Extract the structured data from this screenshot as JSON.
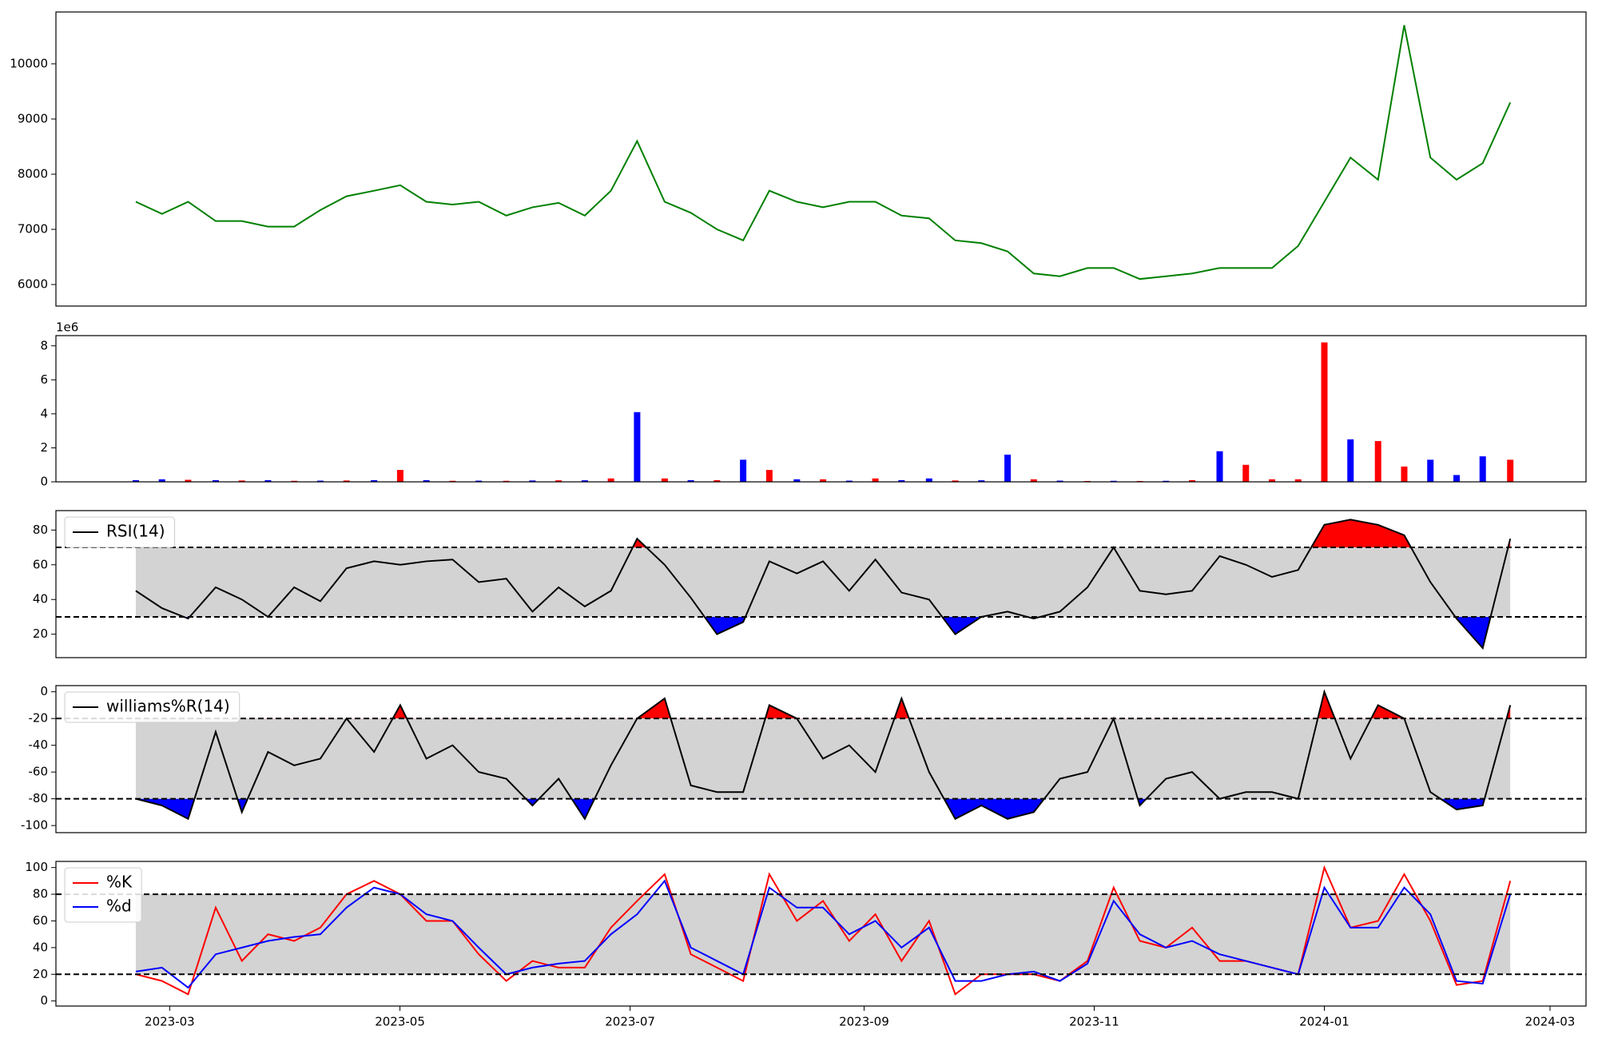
{
  "chart_data": [
    {
      "type": "line",
      "color": "green",
      "xlim": [
        2023.079,
        2024.19
      ],
      "x": [
        2023.137,
        2023.156,
        2023.175,
        2023.195,
        2023.214,
        2023.233,
        2023.252,
        2023.271,
        2023.29,
        2023.31,
        2023.329,
        2023.348,
        2023.367,
        2023.386,
        2023.406,
        2023.425,
        2023.444,
        2023.463,
        2023.482,
        2023.501,
        2023.521,
        2023.54,
        2023.559,
        2023.578,
        2023.597,
        2023.617,
        2023.636,
        2023.655,
        2023.674,
        2023.693,
        2023.713,
        2023.732,
        2023.751,
        2023.77,
        2023.789,
        2023.808,
        2023.828,
        2023.847,
        2023.866,
        2023.885,
        2023.904,
        2023.924,
        2023.943,
        2023.962,
        2023.981,
        2024.0,
        2024.019,
        2024.039,
        2024.058,
        2024.077,
        2024.096,
        2024.115,
        2024.135
      ],
      "values": [
        7500,
        7280,
        7500,
        7150,
        7150,
        7050,
        7050,
        7350,
        7600,
        7700,
        7800,
        7500,
        7450,
        7500,
        7250,
        7400,
        7480,
        7250,
        7700,
        8600,
        7500,
        7300,
        7000,
        6800,
        7700,
        7500,
        7400,
        7500,
        7500,
        7250,
        7200,
        6800,
        6750,
        6600,
        6200,
        6150,
        6300,
        6300,
        6100,
        6150,
        6200,
        6300,
        6300,
        6300,
        6700,
        7500,
        8300,
        7900,
        10700,
        8300,
        7900,
        8200,
        9300
      ],
      "ylim": [
        5610,
        10940
      ],
      "yticks": [
        6000,
        7000,
        8000,
        9000,
        10000
      ]
    },
    {
      "type": "bar",
      "offset_label": "1e6",
      "xlim": [
        2023.079,
        2024.19
      ],
      "x": [
        2023.137,
        2023.156,
        2023.175,
        2023.195,
        2023.214,
        2023.233,
        2023.252,
        2023.271,
        2023.29,
        2023.31,
        2023.329,
        2023.348,
        2023.367,
        2023.386,
        2023.406,
        2023.425,
        2023.444,
        2023.463,
        2023.482,
        2023.501,
        2023.521,
        2023.54,
        2023.559,
        2023.578,
        2023.597,
        2023.617,
        2023.636,
        2023.655,
        2023.674,
        2023.693,
        2023.713,
        2023.732,
        2023.751,
        2023.77,
        2023.789,
        2023.808,
        2023.828,
        2023.847,
        2023.866,
        2023.885,
        2023.904,
        2023.924,
        2023.943,
        2023.962,
        2023.981,
        2024.0,
        2024.019,
        2024.039,
        2024.058,
        2024.077,
        2024.096,
        2024.115,
        2024.135
      ],
      "values": [
        100000,
        150000,
        120000,
        100000,
        80000,
        100000,
        60000,
        70000,
        80000,
        100000,
        700000,
        100000,
        60000,
        70000,
        60000,
        80000,
        90000,
        90000,
        200000,
        4100000,
        200000,
        100000,
        100000,
        1300000,
        700000,
        150000,
        150000,
        70000,
        200000,
        100000,
        200000,
        80000,
        90000,
        1600000,
        150000,
        70000,
        50000,
        60000,
        50000,
        60000,
        100000,
        1800000,
        1000000,
        150000,
        150000,
        8200000,
        2500000,
        2400000,
        900000,
        1300000,
        400000,
        1500000,
        1300000
      ],
      "colors": [
        "blue",
        "blue",
        "red",
        "blue",
        "red",
        "blue",
        "red",
        "blue",
        "red",
        "blue",
        "red",
        "blue",
        "red",
        "blue",
        "red",
        "blue",
        "red",
        "blue",
        "red",
        "blue",
        "red",
        "blue",
        "red",
        "blue",
        "red",
        "blue",
        "red",
        "blue",
        "red",
        "blue",
        "blue",
        "red",
        "blue",
        "blue",
        "red",
        "blue",
        "red",
        "blue",
        "red",
        "blue",
        "red",
        "blue",
        "red",
        "red",
        "red",
        "red",
        "blue",
        "red",
        "red",
        "blue",
        "blue",
        "blue",
        "red"
      ],
      "ylim": [
        0,
        8600000
      ],
      "yticks": [
        0,
        {
          "value": 2000000,
          "label": "2"
        },
        {
          "value": 4000000,
          "label": "4"
        },
        {
          "value": 6000000,
          "label": "6"
        },
        {
          "value": 8000000,
          "label": "8"
        }
      ]
    },
    {
      "type": "line",
      "legend": "upper left",
      "thresholds": [
        30,
        70
      ],
      "band_color": "lightgray",
      "fill_above_color": "red",
      "fill_below_color": "blue",
      "xlim": [
        2023.079,
        2024.19
      ],
      "x": [
        2023.137,
        2023.156,
        2023.175,
        2023.195,
        2023.214,
        2023.233,
        2023.252,
        2023.271,
        2023.29,
        2023.31,
        2023.329,
        2023.348,
        2023.367,
        2023.386,
        2023.406,
        2023.425,
        2023.444,
        2023.463,
        2023.482,
        2023.501,
        2023.521,
        2023.54,
        2023.559,
        2023.578,
        2023.597,
        2023.617,
        2023.636,
        2023.655,
        2023.674,
        2023.693,
        2023.713,
        2023.732,
        2023.751,
        2023.77,
        2023.789,
        2023.808,
        2023.828,
        2023.847,
        2023.866,
        2023.885,
        2023.904,
        2023.924,
        2023.943,
        2023.962,
        2023.981,
        2024.0,
        2024.019,
        2024.039,
        2024.058,
        2024.077,
        2024.096,
        2024.115,
        2024.135
      ],
      "series": [
        {
          "name": "RSI(14)",
          "color": "black",
          "values": [
            45,
            35,
            29,
            47,
            40,
            30,
            47,
            39,
            58,
            62,
            60,
            62,
            63,
            50,
            52,
            33,
            47,
            36,
            45,
            75,
            60,
            41,
            20,
            27,
            62,
            55,
            62,
            45,
            63,
            44,
            40,
            20,
            30,
            33,
            29,
            33,
            47,
            70,
            45,
            43,
            45,
            65,
            60,
            53,
            57,
            83,
            86,
            83,
            77,
            50,
            29,
            12,
            75
          ]
        }
      ],
      "ylim": [
        6.5,
        91.2
      ],
      "yticks": [
        20,
        40,
        60,
        80
      ]
    },
    {
      "type": "line",
      "legend": "upper left",
      "thresholds": [
        -80,
        -20
      ],
      "band_color": "lightgray",
      "fill_above_color": "red",
      "fill_below_color": "blue",
      "xlim": [
        2023.079,
        2024.19
      ],
      "x": [
        2023.137,
        2023.156,
        2023.175,
        2023.195,
        2023.214,
        2023.233,
        2023.252,
        2023.271,
        2023.29,
        2023.31,
        2023.329,
        2023.348,
        2023.367,
        2023.386,
        2023.406,
        2023.425,
        2023.444,
        2023.463,
        2023.482,
        2023.501,
        2023.521,
        2023.54,
        2023.559,
        2023.578,
        2023.597,
        2023.617,
        2023.636,
        2023.655,
        2023.674,
        2023.693,
        2023.713,
        2023.732,
        2023.751,
        2023.77,
        2023.789,
        2023.808,
        2023.828,
        2023.847,
        2023.866,
        2023.885,
        2023.904,
        2023.924,
        2023.943,
        2023.962,
        2023.981,
        2024.0,
        2024.019,
        2024.039,
        2024.058,
        2024.077,
        2024.096,
        2024.115,
        2024.135
      ],
      "series": [
        {
          "name": "williams%R(14)",
          "color": "black",
          "values": [
            -80,
            -85,
            -95,
            -30,
            -90,
            -45,
            -55,
            -50,
            -20,
            -45,
            -10,
            -50,
            -40,
            -60,
            -65,
            -85,
            -65,
            -95,
            -55,
            -20,
            -5,
            -70,
            -75,
            -75,
            -10,
            -20,
            -50,
            -40,
            -60,
            -5,
            -60,
            -95,
            -85,
            -95,
            -90,
            -65,
            -60,
            -20,
            -85,
            -65,
            -60,
            -80,
            -75,
            -75,
            -80,
            0,
            -50,
            -10,
            -20,
            -75,
            -88,
            -85,
            -10
          ]
        }
      ],
      "ylim": [
        -105.3,
        4.6
      ],
      "yticks": [
        -100,
        -80,
        -60,
        -40,
        -20,
        0
      ]
    },
    {
      "type": "line",
      "legend": "upper left",
      "thresholds": [
        20,
        80
      ],
      "band_color": "lightgray",
      "xlim": [
        2023.079,
        2024.19
      ],
      "x": [
        2023.137,
        2023.156,
        2023.175,
        2023.195,
        2023.214,
        2023.233,
        2023.252,
        2023.271,
        2023.29,
        2023.31,
        2023.329,
        2023.348,
        2023.367,
        2023.386,
        2023.406,
        2023.425,
        2023.444,
        2023.463,
        2023.482,
        2023.501,
        2023.521,
        2023.54,
        2023.559,
        2023.578,
        2023.597,
        2023.617,
        2023.636,
        2023.655,
        2023.674,
        2023.693,
        2023.713,
        2023.732,
        2023.751,
        2023.77,
        2023.789,
        2023.808,
        2023.828,
        2023.847,
        2023.866,
        2023.885,
        2023.904,
        2023.924,
        2023.943,
        2023.962,
        2023.981,
        2024.0,
        2024.019,
        2024.039,
        2024.058,
        2024.077,
        2024.096,
        2024.115,
        2024.135
      ],
      "series": [
        {
          "name": "%K",
          "color": "red",
          "values": [
            20,
            15,
            5,
            70,
            30,
            50,
            45,
            55,
            80,
            90,
            80,
            60,
            60,
            35,
            15,
            30,
            25,
            25,
            55,
            75,
            95,
            35,
            25,
            15,
            95,
            60,
            75,
            45,
            65,
            30,
            60,
            5,
            20,
            20,
            20,
            15,
            30,
            85,
            45,
            40,
            55,
            30,
            30,
            25,
            20,
            100,
            55,
            60,
            95,
            60,
            12,
            15,
            90
          ]
        },
        {
          "name": "%d",
          "color": "blue",
          "values": [
            22,
            25,
            10,
            35,
            40,
            45,
            48,
            50,
            70,
            85,
            80,
            65,
            60,
            40,
            20,
            25,
            28,
            30,
            50,
            65,
            90,
            40,
            30,
            20,
            85,
            70,
            70,
            50,
            60,
            40,
            55,
            15,
            15,
            20,
            22,
            15,
            28,
            75,
            50,
            40,
            45,
            35,
            30,
            25,
            20,
            85,
            55,
            55,
            85,
            65,
            15,
            13,
            80
          ]
        }
      ],
      "ylim": [
        -3.8,
        104.6
      ],
      "yticks": [
        0,
        20,
        40,
        60,
        80,
        100
      ],
      "xticks": [
        {
          "value": 2023.1616,
          "label": "2023-03"
        },
        {
          "value": 2023.3288,
          "label": "2023-05"
        },
        {
          "value": 2023.4959,
          "label": "2023-07"
        },
        {
          "value": 2023.6658,
          "label": "2023-09"
        },
        {
          "value": 2023.8329,
          "label": "2023-11"
        },
        {
          "value": 2024.0,
          "label": "2024-01"
        },
        {
          "value": 2024.1639,
          "label": "2024-03"
        }
      ]
    }
  ]
}
